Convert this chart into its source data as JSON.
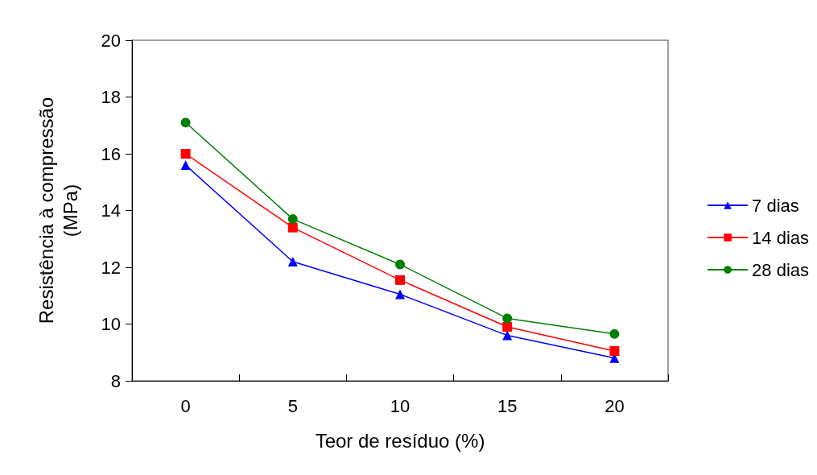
{
  "chart_data": {
    "type": "line",
    "xlabel": "Teor de resíduo (%)",
    "ylabel": "Resistência à compressão\n(MPa)",
    "categories": [
      "0",
      "5",
      "10",
      "15",
      "20"
    ],
    "ylim": [
      8,
      20
    ],
    "yticks": [
      8,
      10,
      12,
      14,
      16,
      18,
      20
    ],
    "grid": false,
    "legend": "right",
    "series": [
      {
        "name": "7 dias",
        "color": "#0000ff",
        "marker": "triangle",
        "values": [
          15.6,
          12.2,
          11.05,
          9.6,
          8.8
        ]
      },
      {
        "name": "14 dias",
        "color": "#ff0000",
        "marker": "square",
        "values": [
          16.0,
          13.4,
          11.55,
          9.9,
          9.05
        ]
      },
      {
        "name": "28 dias",
        "color": "#008000",
        "marker": "circle",
        "values": [
          17.1,
          13.7,
          12.1,
          10.2,
          9.65
        ]
      }
    ]
  }
}
